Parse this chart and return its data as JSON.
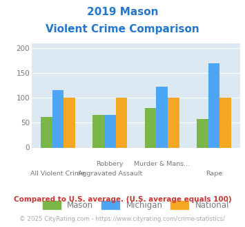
{
  "title_line1": "2019 Mason",
  "title_line2": "Violent Crime Comparison",
  "title_color": "#2277cc",
  "groups": [
    {
      "label_top": "",
      "label_bottom": "All Violent Crime",
      "mason": 61,
      "michigan": 116,
      "national": 100
    },
    {
      "label_top": "Robbery",
      "label_bottom": "Aggravated Assault",
      "mason": 66,
      "michigan": 66,
      "national": 100
    },
    {
      "label_top": "Murder & Mans...",
      "label_bottom": "",
      "mason": 80,
      "michigan": 122,
      "national": 100
    },
    {
      "label_top": "",
      "label_bottom": "Rape",
      "mason": 57,
      "michigan": 170,
      "national": 100
    }
  ],
  "mason_color": "#7ab648",
  "michigan_color": "#4da6f5",
  "national_color": "#f5a623",
  "bar_width": 0.22,
  "ylim": [
    0,
    210
  ],
  "yticks": [
    0,
    50,
    100,
    150,
    200
  ],
  "legend_labels": [
    "Mason",
    "Michigan",
    "National"
  ],
  "note_text": "Compared to U.S. average. (U.S. average equals 100)",
  "note_color": "#cc3333",
  "copyright_text": "© 2025 CityRating.com - https://www.cityrating.com/crime-statistics/",
  "copyright_color": "#aaaaaa",
  "fig_bg_color": "#ffffff",
  "plot_bg_color": "#dce9f2",
  "grid_color": "#ffffff",
  "label_color": "#777777"
}
